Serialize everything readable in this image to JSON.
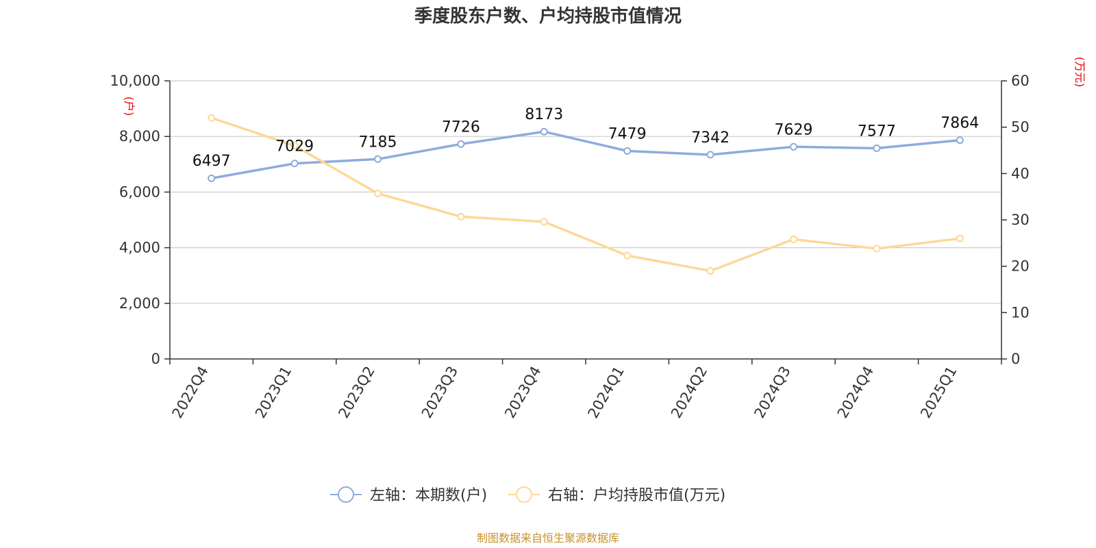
{
  "chart_data": {
    "type": "line",
    "title": "季度股东户数、户均持股市值情况",
    "categories": [
      "2022Q4",
      "2023Q1",
      "2023Q2",
      "2023Q3",
      "2023Q4",
      "2024Q1",
      "2024Q2",
      "2024Q3",
      "2024Q4",
      "2025Q1"
    ],
    "left_axis": {
      "unit": "(户)",
      "ylim": [
        0,
        10000
      ],
      "ticks": [
        "0",
        "2,000",
        "4,000",
        "6,000",
        "8,000",
        "10,000"
      ]
    },
    "right_axis": {
      "unit": "(万元)",
      "ylim": [
        0,
        60
      ],
      "ticks": [
        "0",
        "10",
        "20",
        "30",
        "40",
        "50",
        "60"
      ]
    },
    "series": [
      {
        "name": "左轴：本期数(户)",
        "axis": "left",
        "color": "#8eabdc",
        "values": [
          6497,
          7029,
          7185,
          7726,
          8173,
          7479,
          7342,
          7629,
          7577,
          7864
        ],
        "labels": [
          "6497",
          "7029",
          "7185",
          "7726",
          "8173",
          "7479",
          "7342",
          "7629",
          "7577",
          "7864"
        ]
      },
      {
        "name": "右轴：户均持股市值(万元)",
        "axis": "right",
        "color": "#fdd898",
        "values": [
          52.0,
          46.0,
          35.7,
          30.7,
          29.6,
          22.3,
          19.0,
          25.8,
          23.8,
          26.0
        ]
      }
    ],
    "grid": true,
    "legend": "bottom",
    "source": "制图数据来自恒生聚源数据库"
  }
}
